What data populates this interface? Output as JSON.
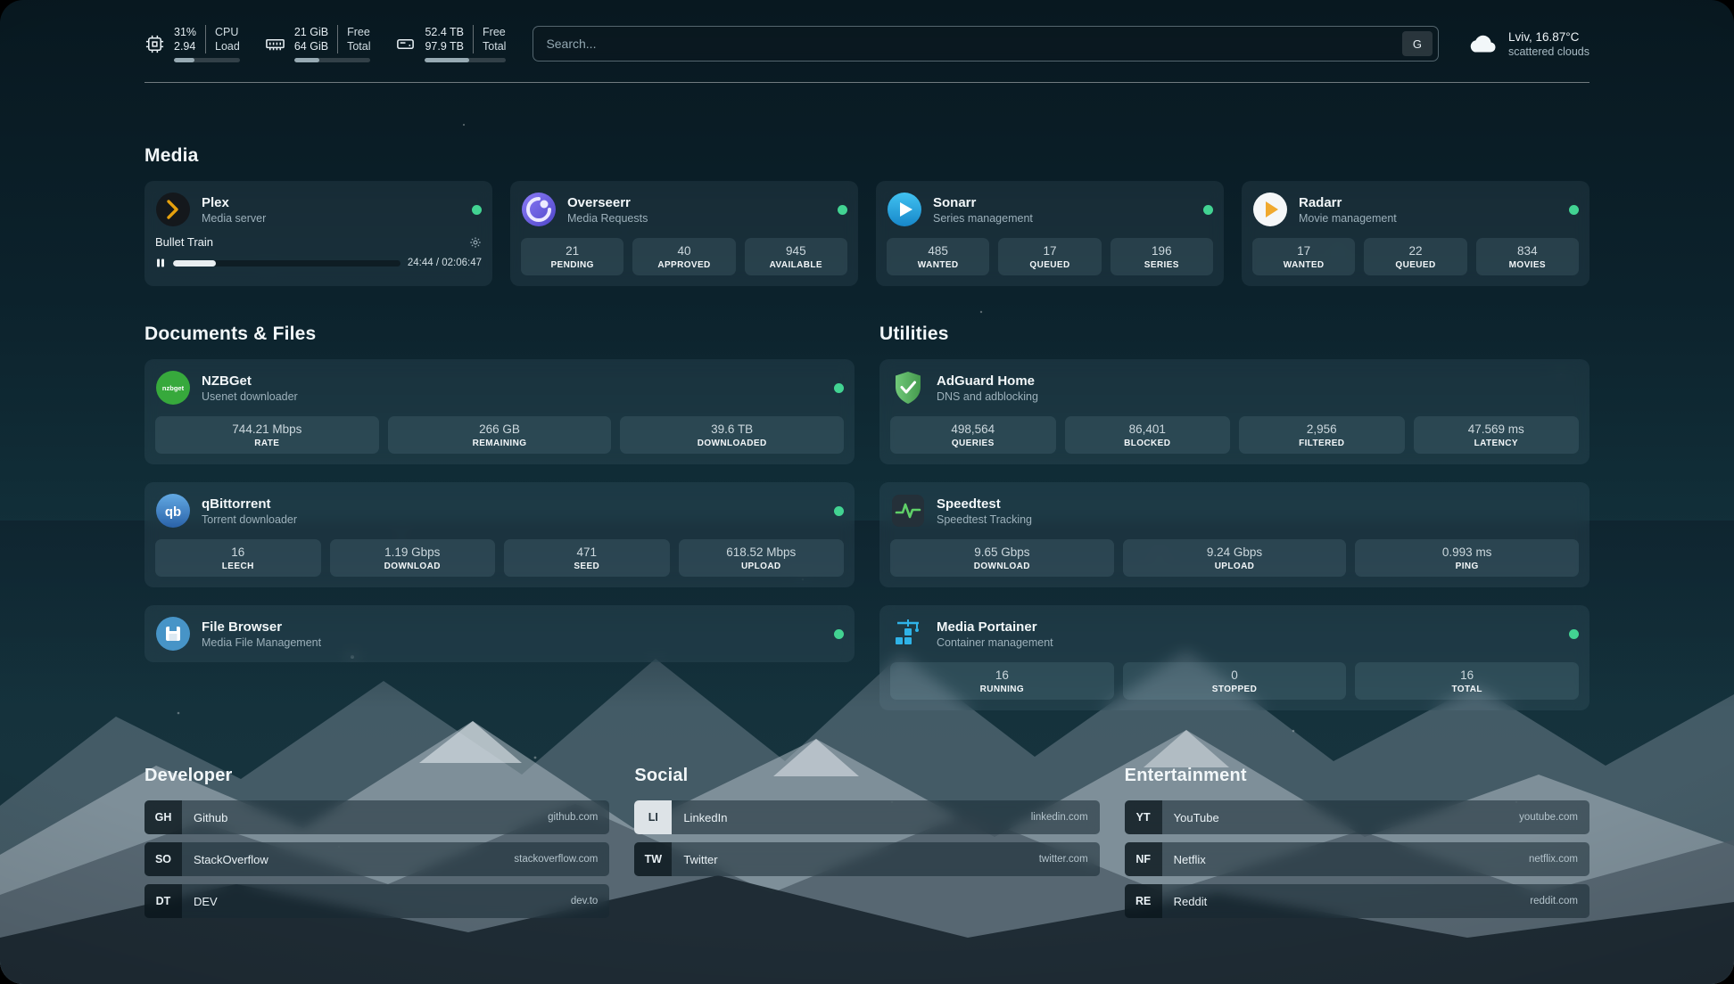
{
  "colors": {
    "status_online": "#42d392",
    "accent_plex": "#e5a00d",
    "accent_overseerr": "#6f5cf6",
    "accent_sonarr": "#2daee2",
    "accent_radarr": "#f0a92e",
    "accent_nzbget": "#37a93c",
    "accent_qbittorrent": "#3f7cc0",
    "accent_adguard": "#55b563",
    "accent_speedtest": "#5fd068",
    "accent_filebrowser": "#4794c7",
    "accent_portainer": "#2fb3e8"
  },
  "header": {
    "resources": [
      {
        "icon": "cpu-icon",
        "value_top": "31%",
        "value_bottom": "2.94",
        "label_top": "CPU",
        "label_bottom": "Load",
        "progress_pct": 31
      },
      {
        "icon": "memory-icon",
        "value_top": "21 GiB",
        "value_bottom": "64 GiB",
        "label_top": "Free",
        "label_bottom": "Total",
        "progress_pct": 33
      },
      {
        "icon": "disk-icon",
        "value_top": "52.4 TB",
        "value_bottom": "97.9 TB",
        "label_top": "Free",
        "label_bottom": "Total",
        "progress_pct": 54
      }
    ],
    "search": {
      "placeholder": "Search...",
      "provider_label": "G"
    },
    "weather": {
      "location": "Lviv, 16.87°C",
      "condition": "scattered clouds"
    }
  },
  "media": {
    "title": "Media",
    "plex": {
      "name": "Plex",
      "subtitle": "Media server",
      "status": "online",
      "now_playing": {
        "title": "Bullet Train",
        "time": "24:44 / 02:06:47",
        "progress_pct": 19
      }
    },
    "overseerr": {
      "name": "Overseerr",
      "subtitle": "Media Requests",
      "status": "online",
      "stats": [
        {
          "value": "21",
          "label": "PENDING"
        },
        {
          "value": "40",
          "label": "APPROVED"
        },
        {
          "value": "945",
          "label": "AVAILABLE"
        }
      ]
    },
    "sonarr": {
      "name": "Sonarr",
      "subtitle": "Series management",
      "status": "online",
      "stats": [
        {
          "value": "485",
          "label": "WANTED"
        },
        {
          "value": "17",
          "label": "QUEUED"
        },
        {
          "value": "196",
          "label": "SERIES"
        }
      ]
    },
    "radarr": {
      "name": "Radarr",
      "subtitle": "Movie management",
      "status": "online",
      "stats": [
        {
          "value": "17",
          "label": "WANTED"
        },
        {
          "value": "22",
          "label": "QUEUED"
        },
        {
          "value": "834",
          "label": "MOVIES"
        }
      ]
    }
  },
  "documents": {
    "title": "Documents & Files",
    "nzbget": {
      "name": "NZBGet",
      "subtitle": "Usenet downloader",
      "status": "online",
      "stats": [
        {
          "value": "744.21 Mbps",
          "label": "RATE"
        },
        {
          "value": "266 GB",
          "label": "REMAINING"
        },
        {
          "value": "39.6 TB",
          "label": "DOWNLOADED"
        }
      ]
    },
    "qbittorrent": {
      "name": "qBittorrent",
      "subtitle": "Torrent downloader",
      "status": "online",
      "stats": [
        {
          "value": "16",
          "label": "LEECH"
        },
        {
          "value": "1.19 Gbps",
          "label": "DOWNLOAD"
        },
        {
          "value": "471",
          "label": "SEED"
        },
        {
          "value": "618.52 Mbps",
          "label": "UPLOAD"
        }
      ]
    },
    "filebrowser": {
      "name": "File Browser",
      "subtitle": "Media File Management",
      "status": "online"
    }
  },
  "utilities": {
    "title": "Utilities",
    "adguard": {
      "name": "AdGuard Home",
      "subtitle": "DNS and adblocking",
      "stats": [
        {
          "value": "498,564",
          "label": "QUERIES"
        },
        {
          "value": "86,401",
          "label": "BLOCKED"
        },
        {
          "value": "2,956",
          "label": "FILTERED"
        },
        {
          "value": "47.569 ms",
          "label": "LATENCY"
        }
      ]
    },
    "speedtest": {
      "name": "Speedtest",
      "subtitle": "Speedtest Tracking",
      "stats": [
        {
          "value": "9.65 Gbps",
          "label": "DOWNLOAD"
        },
        {
          "value": "9.24 Gbps",
          "label": "UPLOAD"
        },
        {
          "value": "0.993 ms",
          "label": "PING"
        }
      ]
    },
    "portainer": {
      "name": "Media Portainer",
      "subtitle": "Container management",
      "status": "online",
      "stats": [
        {
          "value": "16",
          "label": "RUNNING"
        },
        {
          "value": "0",
          "label": "STOPPED"
        },
        {
          "value": "16",
          "label": "TOTAL"
        }
      ]
    }
  },
  "bookmarks": {
    "developer": {
      "title": "Developer",
      "items": [
        {
          "abbr": "GH",
          "name": "Github",
          "url": "github.com"
        },
        {
          "abbr": "SO",
          "name": "StackOverflow",
          "url": "stackoverflow.com"
        },
        {
          "abbr": "DT",
          "name": "DEV",
          "url": "dev.to"
        }
      ]
    },
    "social": {
      "title": "Social",
      "items": [
        {
          "abbr": "LI",
          "name": "LinkedIn",
          "url": "linkedin.com"
        },
        {
          "abbr": "TW",
          "name": "Twitter",
          "url": "twitter.com"
        }
      ]
    },
    "entertainment": {
      "title": "Entertainment",
      "items": [
        {
          "abbr": "YT",
          "name": "YouTube",
          "url": "youtube.com"
        },
        {
          "abbr": "NF",
          "name": "Netflix",
          "url": "netflix.com"
        },
        {
          "abbr": "RE",
          "name": "Reddit",
          "url": "reddit.com"
        }
      ]
    }
  }
}
